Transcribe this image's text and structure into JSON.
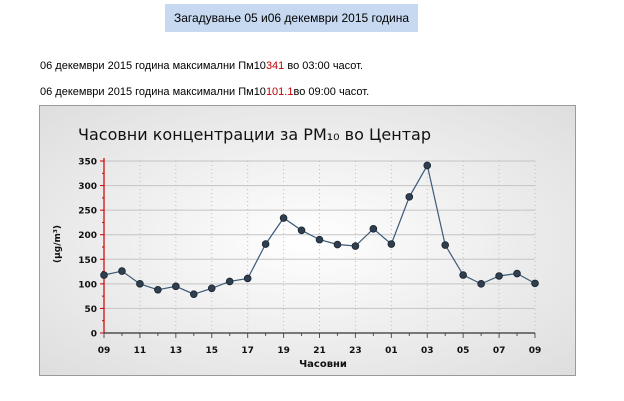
{
  "header": {
    "banner_text": "Загадување 05 и06 декември 2015 година"
  },
  "lines": [
    {
      "prefix": "06 декември 2015 година максимални Пм10",
      "value": "341",
      "suffix": " во 03:00 часот."
    },
    {
      "prefix": "06 декември 2015 година максимални Пм10",
      "value": "101.1",
      "suffix": "во 09:00 часот."
    }
  ],
  "colors": {
    "banner_bg": "#c6d9f0",
    "highlight": "#c00000",
    "series_line": "#3c5a78",
    "marker_fill": "#2f3f4f",
    "axis": "#cc0000"
  },
  "chart_data": {
    "type": "line",
    "title": "Часовни концентрации за PM₁₀ во Центар",
    "xlabel": "Часовни",
    "ylabel": "(µg/m³)",
    "ylim": [
      0,
      350
    ],
    "yticks": [
      0,
      50,
      100,
      150,
      200,
      250,
      300,
      350
    ],
    "grid": true,
    "x": [
      "09",
      "10",
      "11",
      "12",
      "13",
      "14",
      "15",
      "16",
      "17",
      "18",
      "19",
      "20",
      "21",
      "22",
      "23",
      "00",
      "01",
      "02",
      "03",
      "04",
      "05",
      "06",
      "07",
      "08",
      "09"
    ],
    "xtick_labels": [
      "09",
      "11",
      "13",
      "15",
      "17",
      "19",
      "21",
      "23",
      "01",
      "03",
      "05",
      "07",
      "09"
    ],
    "series": [
      {
        "values": [
          118,
          126,
          100,
          88,
          95,
          79,
          91,
          105,
          111,
          181,
          234,
          209,
          190,
          180,
          177,
          212,
          181,
          277,
          341,
          179,
          118,
          100,
          116,
          121,
          101
        ]
      }
    ]
  }
}
